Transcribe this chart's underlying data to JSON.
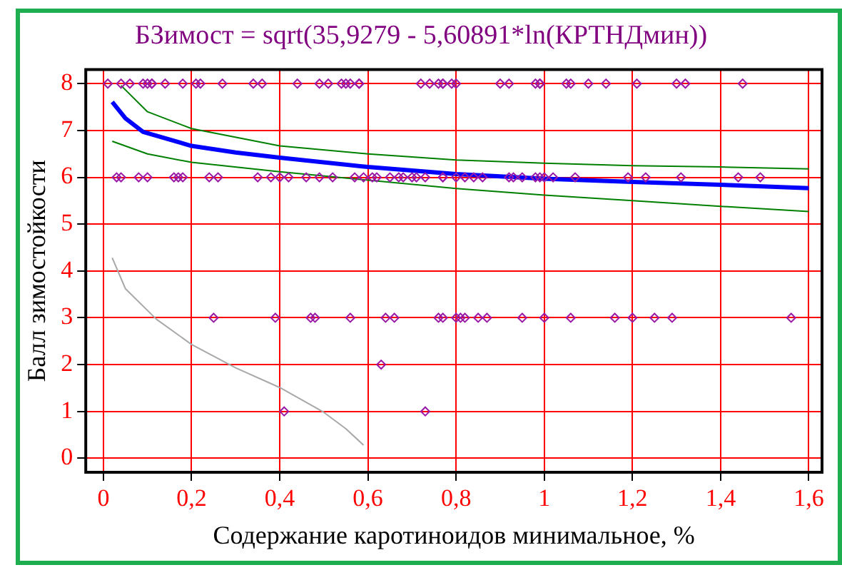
{
  "chart_data": {
    "type": "scatter",
    "title": "БЗимост = sqrt(35,9279 - 5,60891*ln(КРТНДмин))",
    "xlabel": "Содержание каротиноидов минимальное, %",
    "ylabel": "Балл зимостойкости",
    "xlim": [
      -0.04,
      1.63
    ],
    "ylim": [
      -0.3,
      8.3
    ],
    "xticks": [
      {
        "value": 0,
        "label": "0"
      },
      {
        "value": 0.2,
        "label": "0,2"
      },
      {
        "value": 0.4,
        "label": "0,4"
      },
      {
        "value": 0.6,
        "label": "0,6"
      },
      {
        "value": 0.8,
        "label": "0,8"
      },
      {
        "value": 1,
        "label": "1"
      },
      {
        "value": 1.2,
        "label": "1,2"
      },
      {
        "value": 1.4,
        "label": "1,4"
      },
      {
        "value": 1.6,
        "label": "1,6"
      }
    ],
    "yticks": [
      0,
      1,
      2,
      3,
      4,
      5,
      6,
      7,
      8
    ],
    "grid": true,
    "legend": false,
    "series": [
      {
        "marker": "diamond",
        "color": "#9a1aa8",
        "x": [
          0.01,
          0.04,
          0.06,
          0.09,
          0.1,
          0.11,
          0.11,
          0.14,
          0.18,
          0.21,
          0.22,
          0.27,
          0.34,
          0.36,
          0.44,
          0.49,
          0.51,
          0.54,
          0.55,
          0.56,
          0.58,
          0.58,
          0.72,
          0.74,
          0.76,
          0.77,
          0.77,
          0.79,
          0.8,
          0.9,
          0.92,
          0.98,
          0.99,
          0.99,
          1.05,
          1.06,
          1.1,
          1.14,
          1.21,
          1.3,
          1.32,
          1.45,
          0.03,
          0.04,
          0.08,
          0.1,
          0.16,
          0.17,
          0.18,
          0.24,
          0.26,
          0.35,
          0.38,
          0.4,
          0.42,
          0.46,
          0.49,
          0.52,
          0.57,
          0.59,
          0.61,
          0.62,
          0.65,
          0.67,
          0.68,
          0.7,
          0.71,
          0.73,
          0.77,
          0.77,
          0.8,
          0.82,
          0.84,
          0.86,
          0.92,
          0.93,
          0.95,
          0.98,
          0.99,
          1.0,
          1.02,
          1.07,
          1.19,
          1.23,
          1.31,
          1.44,
          1.49,
          0.25,
          0.39,
          0.47,
          0.48,
          0.56,
          0.64,
          0.66,
          0.76,
          0.77,
          0.8,
          0.81,
          0.82,
          0.85,
          0.87,
          0.95,
          1.0,
          1.06,
          1.16,
          1.2,
          1.25,
          1.29,
          1.56,
          0.63,
          0.41,
          0.73
        ],
        "values": [
          8,
          8,
          8,
          8,
          8,
          8,
          8,
          8,
          8,
          8,
          8,
          8,
          8,
          8,
          8,
          8,
          8,
          8,
          8,
          8,
          8,
          8,
          8,
          8,
          8,
          8,
          8,
          8,
          8,
          8,
          8,
          8,
          8,
          8,
          8,
          8,
          8,
          8,
          8,
          8,
          8,
          8,
          6,
          6,
          6,
          6,
          6,
          6,
          6,
          6,
          6,
          6,
          6,
          6,
          6,
          6,
          6,
          6,
          6,
          6,
          6,
          6,
          6,
          6,
          6,
          6,
          6,
          6,
          6,
          6,
          6,
          6,
          6,
          6,
          6,
          6,
          6,
          6,
          6,
          6,
          6,
          6,
          6,
          6,
          6,
          6,
          6,
          3,
          3,
          3,
          3,
          3,
          3,
          3,
          3,
          3,
          3,
          3,
          3,
          3,
          3,
          3,
          3,
          3,
          3,
          3,
          3,
          3,
          3,
          2,
          1,
          1
        ]
      },
      {
        "type": "line",
        "marker": "none",
        "color": "#0000ff",
        "x": [
          0.02,
          0.05,
          0.09,
          0.2,
          0.3,
          0.4,
          0.6,
          0.8,
          1.0,
          1.2,
          1.4,
          1.6
        ],
        "values": [
          7.61,
          7.26,
          6.97,
          6.67,
          6.53,
          6.42,
          6.22,
          6.07,
          5.97,
          5.9,
          5.84,
          5.77
        ]
      },
      {
        "type": "line",
        "marker": "none",
        "color": "#008000",
        "x": [
          0.04,
          0.1,
          0.2,
          0.4,
          0.6,
          0.8,
          1.0,
          1.2,
          1.4,
          1.6
        ],
        "values": [
          7.96,
          7.4,
          7.04,
          6.67,
          6.5,
          6.37,
          6.3,
          6.25,
          6.22,
          6.18
        ]
      },
      {
        "type": "line",
        "marker": "none",
        "color": "#008000",
        "x": [
          0.02,
          0.1,
          0.2,
          0.4,
          0.6,
          0.8,
          1.0,
          1.2,
          1.4,
          1.6
        ],
        "values": [
          6.77,
          6.5,
          6.32,
          6.12,
          5.94,
          5.76,
          5.62,
          5.5,
          5.38,
          5.27
        ]
      },
      {
        "type": "line",
        "marker": "none",
        "color": "#a8a8a8",
        "x": [
          0.02,
          0.05,
          0.12,
          0.2,
          0.3,
          0.4,
          0.5,
          0.55,
          0.59
        ],
        "values": [
          4.28,
          3.62,
          2.97,
          2.43,
          1.93,
          1.51,
          0.98,
          0.63,
          0.28
        ]
      }
    ]
  }
}
